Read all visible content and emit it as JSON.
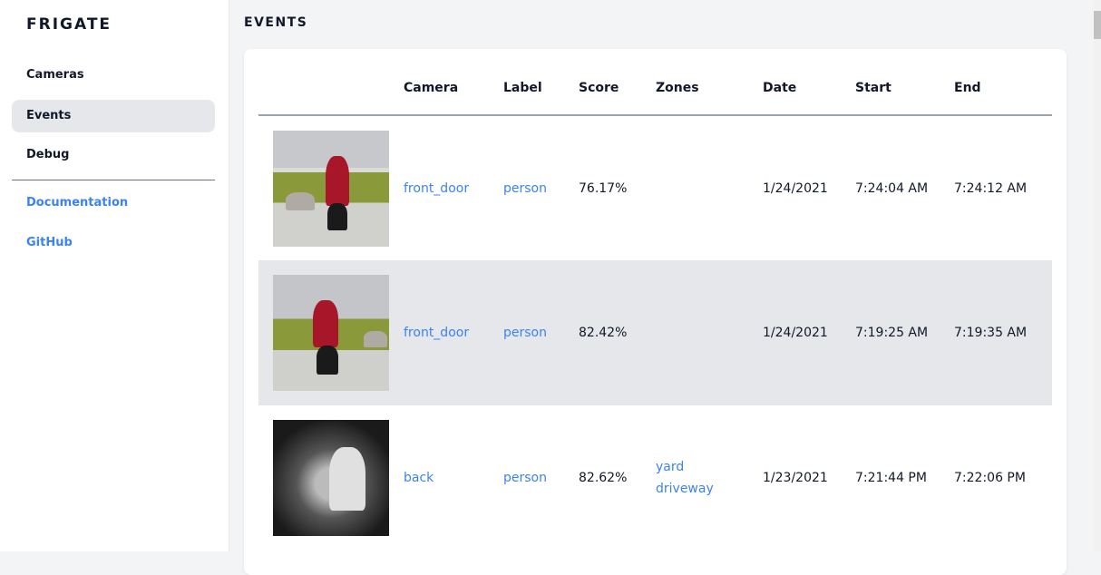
{
  "sidebar": {
    "brand": "FRIGATE",
    "items": [
      {
        "label": "Cameras"
      },
      {
        "label": "Events",
        "active": true
      },
      {
        "label": "Debug"
      }
    ],
    "links": [
      {
        "label": "Documentation"
      },
      {
        "label": "GitHub"
      }
    ]
  },
  "page": {
    "title": "EVENTS"
  },
  "table": {
    "headers": [
      "",
      "Camera",
      "Label",
      "Score",
      "Zones",
      "Date",
      "Start",
      "End"
    ],
    "rows": [
      {
        "camera": "front_door",
        "label": "person",
        "score": "76.17%",
        "zones": [
          "",
          ""
        ],
        "date": "1/24/2021",
        "start": "7:24:04 AM",
        "end": "7:24:12 AM"
      },
      {
        "camera": "front_door",
        "label": "person",
        "score": "82.42%",
        "zones": [
          "",
          ""
        ],
        "date": "1/24/2021",
        "start": "7:19:25 AM",
        "end": "7:19:35 AM"
      },
      {
        "camera": "back",
        "label": "person",
        "score": "82.62%",
        "zones": [
          "yard",
          "driveway"
        ],
        "date": "1/23/2021",
        "start": "7:21:44 PM",
        "end": "7:22:06 PM"
      }
    ]
  },
  "colors": {
    "link": "#3b82f6",
    "active_bg": "#e5e7eb"
  }
}
